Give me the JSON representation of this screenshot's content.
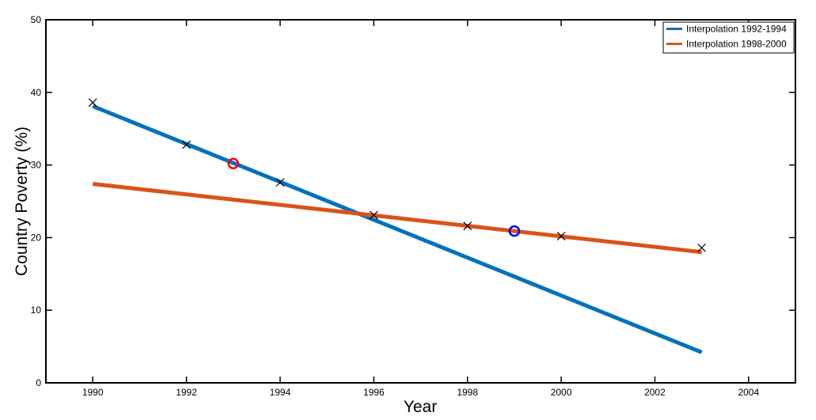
{
  "chart_data": {
    "type": "line",
    "title": "",
    "xlabel": "Year",
    "ylabel": "Country Poverty (%)",
    "xlim": [
      1989,
      2005
    ],
    "ylim": [
      0,
      50
    ],
    "x_ticks": [
      1990,
      1992,
      1994,
      1996,
      1998,
      2000,
      2002,
      2004
    ],
    "y_ticks": [
      0,
      10,
      20,
      30,
      40,
      50
    ],
    "grid": false,
    "legend": {
      "placement": "top-right",
      "entries": [
        "Interpolation 1992-1994",
        "Interpolation 1998-2000"
      ]
    },
    "series": [
      {
        "name": "Interpolation 1992-1994",
        "color": "#0072BD",
        "x": [
          1990,
          2003
        ],
        "y": [
          38.1,
          4.2
        ]
      },
      {
        "name": "Interpolation 1998-2000",
        "color": "#D95319",
        "x": [
          1990,
          2003
        ],
        "y": [
          27.4,
          18.0
        ]
      }
    ],
    "observations": {
      "marker": "x",
      "color": "#000000",
      "x": [
        1990,
        1992,
        1994,
        1996,
        1998,
        2000,
        2003
      ],
      "y": [
        38.6,
        32.8,
        27.6,
        23.1,
        21.6,
        20.2,
        18.6
      ]
    },
    "highlights": [
      {
        "x": 1993,
        "y": 30.2,
        "color": "#FF0000"
      },
      {
        "x": 1999,
        "y": 20.9,
        "color": "#0000FF"
      }
    ]
  }
}
